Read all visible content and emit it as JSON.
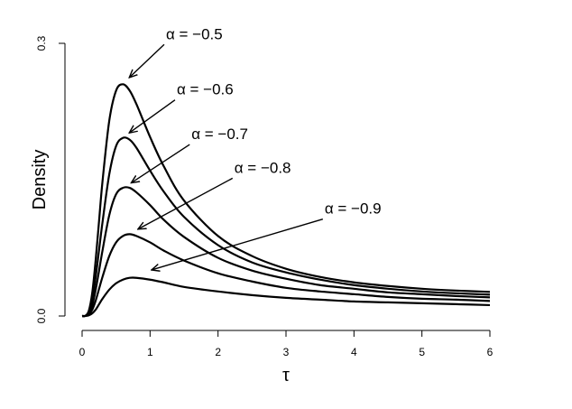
{
  "chart_data": {
    "type": "line",
    "xlabel": "τ",
    "ylabel": "Density",
    "xlim": [
      0,
      6
    ],
    "ylim": [
      0,
      0.3
    ],
    "x_ticks": [
      0,
      1,
      2,
      3,
      4,
      5,
      6
    ],
    "x_tick_labels": [
      "0",
      "1",
      "2",
      "3",
      "4",
      "5",
      "6"
    ],
    "y_ticks": [
      0,
      0.3
    ],
    "y_tick_labels": [
      "0.0",
      "0.3"
    ],
    "grid": false,
    "legend": "none",
    "x": [
      0,
      0.05,
      0.1,
      0.15,
      0.2,
      0.25,
      0.3,
      0.4,
      0.5,
      0.6,
      0.7,
      0.8,
      1.0,
      1.2,
      1.5,
      2.0,
      2.5,
      3.0,
      3.5,
      4.0,
      4.5,
      5.0,
      5.5,
      6.0
    ],
    "series": [
      {
        "values": [
          0,
          0.0003,
          0.006,
          0.026,
          0.062,
          0.105,
          0.148,
          0.215,
          0.248,
          0.255,
          0.248,
          0.233,
          0.197,
          0.165,
          0.127,
          0.088,
          0.066,
          0.052,
          0.043,
          0.037,
          0.033,
          0.03,
          0.028,
          0.0265
        ]
      },
      {
        "values": [
          0,
          0.0002,
          0.004,
          0.018,
          0.043,
          0.073,
          0.103,
          0.156,
          0.187,
          0.196,
          0.194,
          0.185,
          0.16,
          0.137,
          0.109,
          0.078,
          0.059,
          0.048,
          0.04,
          0.034,
          0.03,
          0.027,
          0.025,
          0.0235
        ]
      },
      {
        "values": [
          0,
          0.0001,
          0.003,
          0.012,
          0.029,
          0.05,
          0.072,
          0.111,
          0.134,
          0.141,
          0.141,
          0.136,
          0.122,
          0.106,
          0.087,
          0.064,
          0.05,
          0.041,
          0.034,
          0.03,
          0.026,
          0.024,
          0.022,
          0.0205
        ]
      },
      {
        "values": [
          0,
          0.0001,
          0.002,
          0.007,
          0.017,
          0.03,
          0.043,
          0.066,
          0.081,
          0.088,
          0.09,
          0.088,
          0.081,
          0.072,
          0.061,
          0.047,
          0.038,
          0.031,
          0.027,
          0.024,
          0.021,
          0.019,
          0.018,
          0.0165
        ]
      },
      {
        "values": [
          0,
          5e-05,
          0.0008,
          0.003,
          0.007,
          0.013,
          0.019,
          0.029,
          0.036,
          0.04,
          0.042,
          0.042,
          0.04,
          0.037,
          0.032,
          0.027,
          0.023,
          0.02,
          0.018,
          0.016,
          0.015,
          0.014,
          0.013,
          0.012
        ]
      }
    ],
    "annotations": [
      {
        "text": "α = −0.5",
        "series_index": 0,
        "point": [
          0.65,
          0.259
        ]
      },
      {
        "text": "α = −0.6",
        "series_index": 1,
        "point": [
          0.65,
          0.198
        ]
      },
      {
        "text": "α = −0.7",
        "series_index": 2,
        "point": [
          0.68,
          0.143
        ]
      },
      {
        "text": "α = −0.8",
        "series_index": 3,
        "point": [
          0.78,
          0.092
        ]
      },
      {
        "text": "α = −0.9",
        "series_index": 4,
        "point": [
          0.98,
          0.047
        ]
      }
    ]
  }
}
